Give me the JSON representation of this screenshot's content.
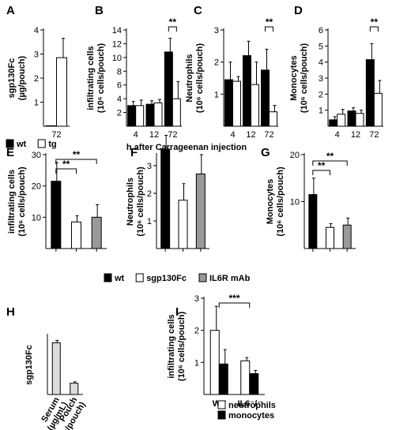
{
  "shared": {
    "xlabel_top": "h after Carrageenan injection",
    "legend_top": [
      {
        "name": "wt",
        "color": "#000000"
      },
      {
        "name": "tg",
        "color": "#ffffff"
      }
    ],
    "legend_mid": [
      {
        "name": "wt",
        "color": "#000000"
      },
      {
        "name": "sgp130Fc",
        "color": "#ffffff"
      },
      {
        "name": "IL6R mAb",
        "color": "#999999"
      }
    ],
    "legend_i": [
      {
        "name": "neutrophils",
        "color": "#ffffff"
      },
      {
        "name": "monocytes",
        "color": "#000000"
      }
    ]
  },
  "chart_data": [
    {
      "panel": "A",
      "type": "bar",
      "ylabel": "sgp130Fc (µg/pouch)",
      "ylim": [
        0,
        4
      ],
      "yticks": [
        1,
        2,
        3,
        4
      ],
      "categories": [
        "72"
      ],
      "series": [
        {
          "name": "wt",
          "values": [
            0.02
          ],
          "errors": [
            0
          ]
        },
        {
          "name": "tg",
          "values": [
            2.85
          ],
          "errors": [
            0.8
          ]
        }
      ]
    },
    {
      "panel": "B",
      "type": "bar",
      "ylabel": "infiltrating cells (10⁶ cells/pouch)",
      "ylim": [
        0,
        14
      ],
      "yticks": [
        2,
        4,
        6,
        8,
        10,
        12,
        14
      ],
      "categories": [
        "4",
        "12",
        "72"
      ],
      "series": [
        {
          "name": "wt",
          "values": [
            3.0,
            3.2,
            10.8
          ],
          "errors": [
            0.6,
            0.5,
            2.0
          ]
        },
        {
          "name": "tg",
          "values": [
            3.0,
            3.4,
            4.0
          ],
          "errors": [
            0.8,
            0.5,
            2.5
          ]
        }
      ],
      "significance": [
        {
          "category": "72",
          "label": "**"
        }
      ]
    },
    {
      "panel": "C",
      "type": "bar",
      "ylabel": "Neutrophils (10⁶ cells/pouch)",
      "ylim": [
        0,
        3
      ],
      "yticks": [
        1,
        2,
        3
      ],
      "categories": [
        "4",
        "12",
        "72"
      ],
      "series": [
        {
          "name": "wt",
          "values": [
            1.45,
            2.2,
            1.75
          ],
          "errors": [
            0.55,
            0.45,
            0.65
          ]
        },
        {
          "name": "tg",
          "values": [
            1.4,
            1.3,
            0.45
          ],
          "errors": [
            0.15,
            0.7,
            0.2
          ]
        }
      ],
      "significance": [
        {
          "category": "72",
          "label": "**"
        }
      ]
    },
    {
      "panel": "D",
      "type": "bar",
      "ylabel": "Monocytes (10⁶ cells/pouch)",
      "ylim": [
        0,
        6
      ],
      "yticks": [
        1,
        2,
        3,
        4,
        5,
        6
      ],
      "categories": [
        "4",
        "12",
        "72"
      ],
      "series": [
        {
          "name": "wt",
          "values": [
            0.4,
            0.95,
            4.15
          ],
          "errors": [
            0.2,
            0.2,
            1.0
          ]
        },
        {
          "name": "tg",
          "values": [
            0.75,
            0.8,
            2.05
          ],
          "errors": [
            0.3,
            0.2,
            0.8
          ]
        }
      ],
      "significance": [
        {
          "category": "72",
          "label": "**"
        }
      ]
    },
    {
      "panel": "E",
      "type": "bar",
      "ylabel": "infiltrating cells (10⁶ cells/pouch)",
      "ylim": [
        0,
        30
      ],
      "yticks": [
        10,
        20,
        30
      ],
      "categories": [
        "wt",
        "sgp130Fc",
        "IL6R mAb"
      ],
      "values": [
        21.5,
        8.5,
        10.0
      ],
      "errors": [
        6.0,
        2.0,
        4.0
      ],
      "colors": [
        "#000000",
        "#ffffff",
        "#999999"
      ],
      "significance": [
        {
          "from": "wt",
          "to": "sgp130Fc",
          "label": "**"
        },
        {
          "from": "wt",
          "to": "IL6R mAb",
          "label": "**"
        }
      ]
    },
    {
      "panel": "F",
      "type": "bar",
      "ylabel": "Neutrophils (10⁶ cells/pouch)",
      "ylim": [
        0,
        3.4
      ],
      "yticks": [
        1,
        2,
        3
      ],
      "categories": [
        "wt",
        "sgp130Fc",
        "IL6R mAb"
      ],
      "values": [
        3.6,
        1.75,
        2.7
      ],
      "errors": [
        0.5,
        0.6,
        0.7
      ],
      "colors": [
        "#000000",
        "#ffffff",
        "#999999"
      ]
    },
    {
      "panel": "G",
      "type": "bar",
      "ylabel": "Monocytes (10⁶ cells/pouch)",
      "ylim": [
        0,
        20
      ],
      "yticks": [
        10,
        20
      ],
      "categories": [
        "wt",
        "sgp130Fc",
        "IL6R mAb"
      ],
      "values": [
        11.5,
        4.5,
        5.0
      ],
      "errors": [
        3.5,
        0.8,
        1.5
      ],
      "colors": [
        "#000000",
        "#ffffff",
        "#999999"
      ],
      "significance": [
        {
          "from": "wt",
          "to": "sgp130Fc",
          "label": "**"
        },
        {
          "from": "wt",
          "to": "IL6R mAb",
          "label": "**"
        }
      ]
    },
    {
      "panel": "H",
      "type": "bar",
      "ylabel": "sgp130Fc",
      "ylim": [
        0,
        20
      ],
      "yticks": [],
      "categories": [
        "Serum (µg/mL)",
        "Pouch (µg/pouch)"
      ],
      "values": [
        17.5,
        3.8
      ],
      "errors": [
        0.8,
        0.5
      ],
      "colors": [
        "#dddddd",
        "#dddddd"
      ]
    },
    {
      "panel": "I",
      "type": "bar",
      "ylabel": "infiltrating cells (10⁶ cells/pouch)",
      "ylim": [
        0,
        3
      ],
      "yticks": [
        1,
        2,
        3
      ],
      "categories": [
        "WT",
        "IL6⁻/⁻"
      ],
      "series": [
        {
          "name": "neutrophils",
          "values": [
            2.0,
            1.05
          ],
          "errors": [
            0.75,
            0.1
          ]
        },
        {
          "name": "monocytes",
          "values": [
            0.95,
            0.65
          ],
          "errors": [
            0.45,
            0.1
          ]
        }
      ],
      "significance": [
        {
          "from": "WT",
          "to": "IL6⁻/⁻",
          "label": "***"
        }
      ]
    }
  ]
}
